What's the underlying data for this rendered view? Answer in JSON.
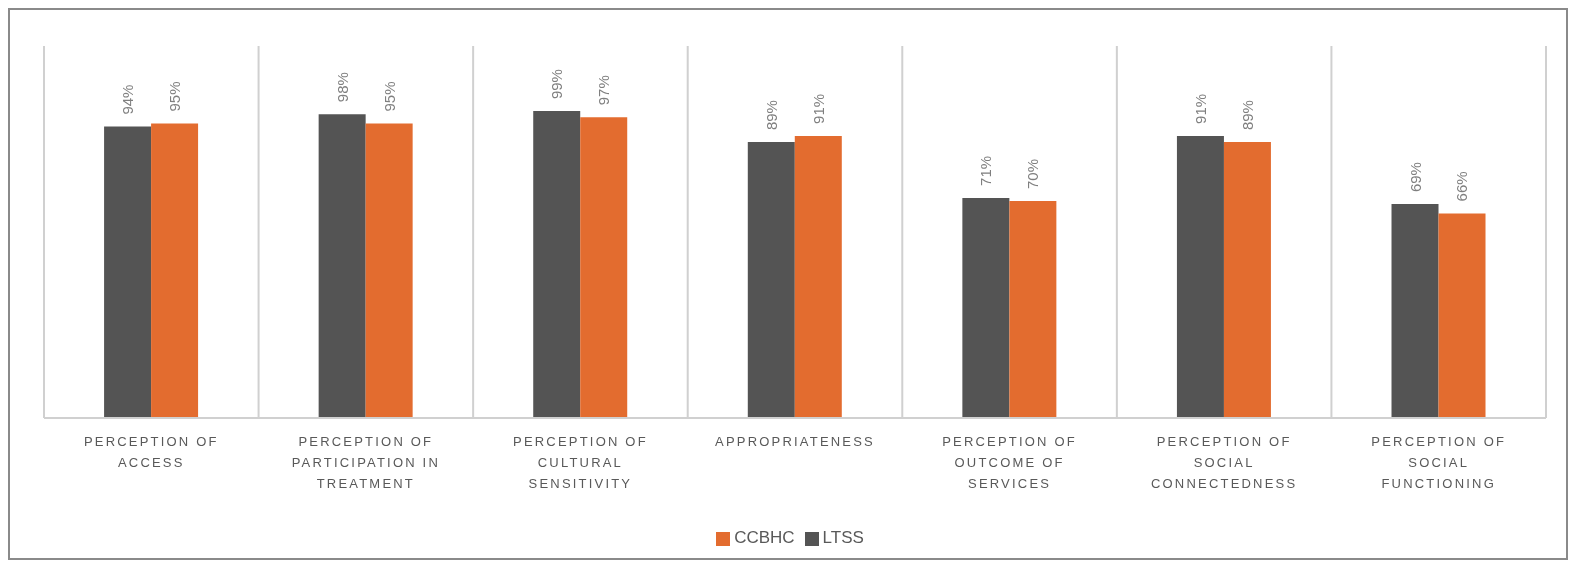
{
  "chart_data": {
    "type": "bar",
    "categories": [
      "PERCEPTION OF ACCESS",
      "PERCEPTION OF PARTICIPATION IN TREATMENT",
      "PERCEPTION OF CULTURAL SENSITIVITY",
      "APPROPRIATENESS",
      "PERCEPTION OF OUTCOME OF SERVICES",
      "PERCEPTION OF SOCIAL CONNECTEDNESS",
      "PERCEPTION OF SOCIAL FUNCTIONING"
    ],
    "series": [
      {
        "name": "LTSS",
        "color": "#545454",
        "values": [
          94,
          98,
          99,
          89,
          71,
          91,
          69
        ],
        "value_labels": [
          "94%",
          "98%",
          "99%",
          "89%",
          "71%",
          "91%",
          "69%"
        ]
      },
      {
        "name": "CCBHC",
        "color": "#e36c2f",
        "values": [
          95,
          95,
          97,
          91,
          70,
          89,
          66
        ],
        "value_labels": [
          "95%",
          "95%",
          "97%",
          "91%",
          "70%",
          "89%",
          "66%"
        ]
      }
    ],
    "ylim": [
      0,
      120
    ],
    "grid": "x",
    "legend": "bottom",
    "tick_labels": "x"
  }
}
